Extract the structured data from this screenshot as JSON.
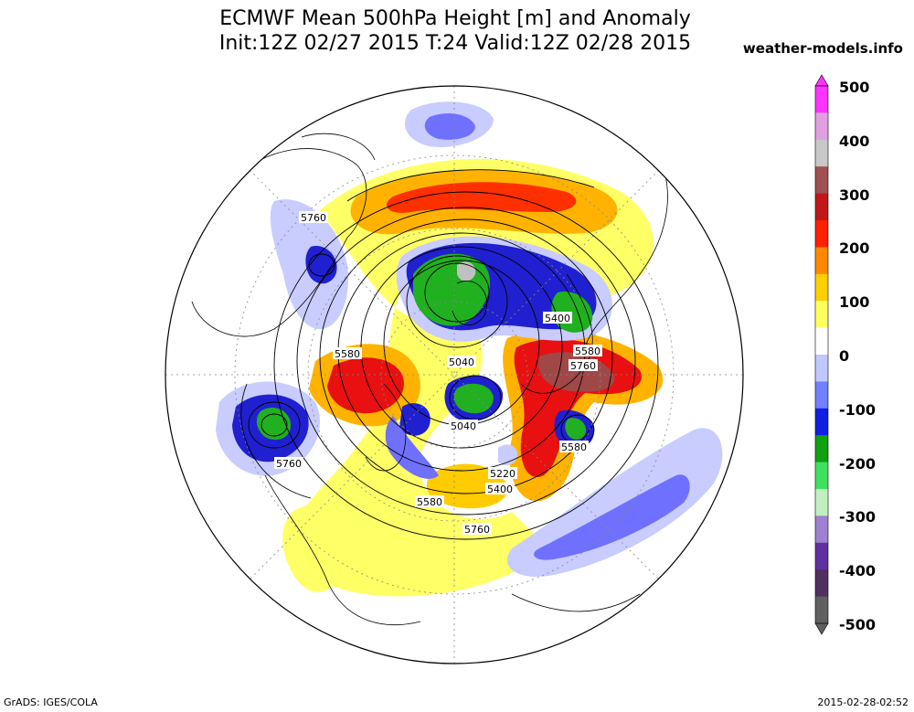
{
  "title_line1": "ECMWF Mean 500hPa Height [m] and Anomaly",
  "title_line2": "Init:12Z 02/27 2015 T:24 Valid:12Z 02/28 2015",
  "site": "weather-models.info",
  "footer_left": "GrADS: IGES/COLA",
  "footer_right": "2015-02-28-02:52",
  "colorbar": {
    "ticks": [
      "500",
      "400",
      "300",
      "200",
      "100",
      "0",
      "-100",
      "-200",
      "-300",
      "-400",
      "-500"
    ],
    "colors": [
      "#ff33ff",
      "#e0a0e0",
      "#c8c8c8",
      "#a05050",
      "#c01818",
      "#ff2000",
      "#ff8800",
      "#ffd000",
      "#ffff60",
      "#ffffff",
      "#c0c8ff",
      "#7080ff",
      "#1020e0",
      "#10a010",
      "#40e060",
      "#c0f0c0",
      "#a080d0",
      "#6030a0",
      "#503060",
      "#606060"
    ]
  },
  "contour_labels": [
    "5760",
    "5580",
    "5400",
    "5580",
    "5760",
    "5040",
    "5040",
    "5220",
    "5400",
    "5580",
    "5760",
    "5580",
    "5760"
  ],
  "anomaly_colors": {
    "pos_weak": "#ffff66",
    "pos_mid": "#ffcc00",
    "pos_strong": "#ff7700",
    "pos_very": "#e01010",
    "pos_max": "#a04040",
    "neg_weak": "#c8ccff",
    "neg_mid": "#7070ff",
    "neg_strong": "#1a1acc",
    "neg_very": "#20b020",
    "neg_max": "#c0c0c0"
  }
}
